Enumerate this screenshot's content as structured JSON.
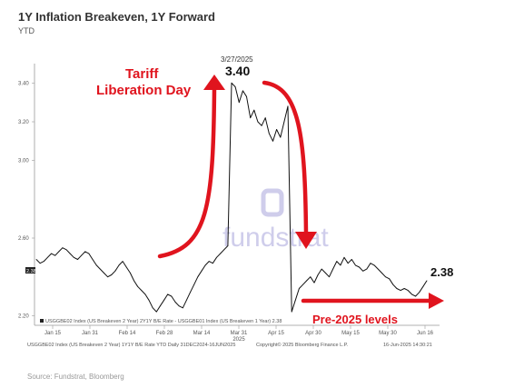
{
  "header": {
    "title": "1Y Inflation Breakeven, 1Y Forward",
    "subtitle": "YTD"
  },
  "source": "Source: Fundstrat, Bloomberg",
  "watermark": "fundstrat",
  "colors": {
    "line": "#111111",
    "annotation": "#e0141e",
    "watermark": "#a9a6dc"
  },
  "chart_data": {
    "type": "line",
    "title": "1Y Inflation Breakeven, 1Y Forward",
    "ylim": [
      2.15,
      3.5
    ],
    "grid": false,
    "y_ticks": [
      "3.40",
      "3.20",
      "3.00",
      "2.60",
      "2.20"
    ],
    "x_ticks": [
      "Jan 15",
      "Jan 31",
      "Feb 14",
      "Feb 28",
      "Mar 14",
      "Mar 31",
      "Apr 15",
      "Apr 30",
      "May 15",
      "May 30",
      "Jun 16"
    ],
    "x_year_label": "2025",
    "last_value_tag": "2.38",
    "legend": "USGGBE02 Index (US Breakeven 2 Year) 2Y1Y B/E Rate - USGGBE01 Index (US Breakeven 1 Year) 2.38",
    "footer_left": "USGGBE02 Index (US Breakeven 2 Year) 1Y1Y B/E Rate YTD  Daily 31DEC2024-16JUN2025",
    "footer_mid": "Copyright© 2025 Bloomberg Finance L.P.",
    "footer_right": "16-Jun-2025 14:30:21",
    "series": [
      {
        "values": [
          2.49,
          2.47,
          2.48,
          2.5,
          2.52,
          2.51,
          2.53,
          2.55,
          2.54,
          2.52,
          2.5,
          2.49,
          2.51,
          2.53,
          2.52,
          2.49,
          2.46,
          2.44,
          2.42,
          2.4,
          2.41,
          2.43,
          2.46,
          2.48,
          2.45,
          2.42,
          2.38,
          2.35,
          2.33,
          2.31,
          2.28,
          2.24,
          2.22,
          2.25,
          2.28,
          2.31,
          2.3,
          2.27,
          2.25,
          2.24,
          2.28,
          2.32,
          2.36,
          2.4,
          2.43,
          2.46,
          2.48,
          2.47,
          2.5,
          2.52,
          2.54,
          2.56,
          3.4,
          3.38,
          3.3,
          3.36,
          3.33,
          3.22,
          3.26,
          3.2,
          3.18,
          3.22,
          3.14,
          3.1,
          3.16,
          3.12,
          3.2,
          3.28,
          2.22,
          2.28,
          2.34,
          2.36,
          2.38,
          2.4,
          2.37,
          2.41,
          2.44,
          2.42,
          2.4,
          2.44,
          2.48,
          2.46,
          2.5,
          2.47,
          2.49,
          2.46,
          2.45,
          2.43,
          2.44,
          2.47,
          2.46,
          2.44,
          2.42,
          2.4,
          2.39,
          2.36,
          2.34,
          2.33,
          2.34,
          2.33,
          2.31,
          2.3,
          2.32,
          2.35,
          2.38
        ]
      }
    ]
  },
  "annotations": {
    "tariff_line1": "Tariff",
    "tariff_line2": "Liberation Day",
    "peak_date": "3/27/2025",
    "peak_value": "3.40",
    "end_value": "2.38",
    "pre_levels": "Pre-2025 levels"
  }
}
